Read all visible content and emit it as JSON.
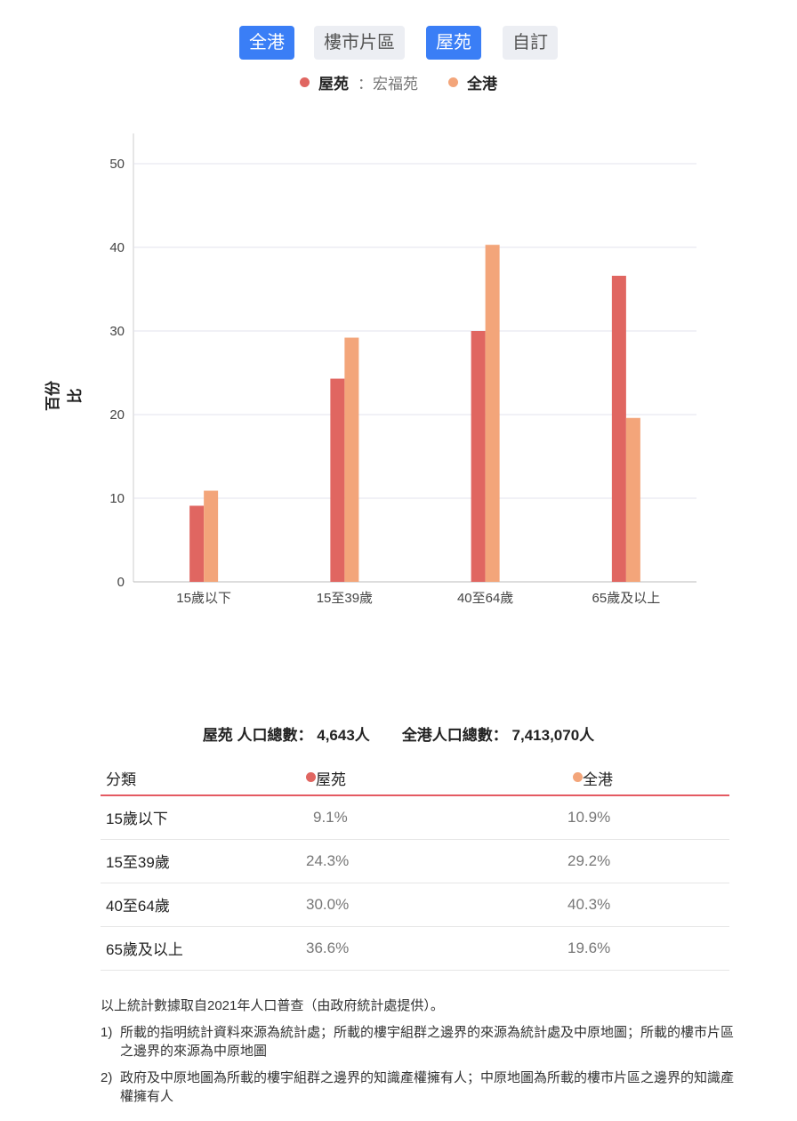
{
  "tabs": [
    {
      "label": "全港",
      "active": true
    },
    {
      "label": "樓市片區",
      "active": false
    },
    {
      "label": "屋苑",
      "active": true
    },
    {
      "label": "自訂",
      "active": false
    }
  ],
  "legend": {
    "estate_label": "屋苑",
    "estate_name": "：宏福苑",
    "hk_label": "全港"
  },
  "colors": {
    "estate": "#e06661",
    "hk": "#f3a57a",
    "tab_active": "#3a7ef6"
  },
  "chart_data": {
    "type": "bar",
    "categories": [
      "15歲以下",
      "15至39歲",
      "40至64歲",
      "65歲及以上"
    ],
    "series": [
      {
        "name": "屋苑",
        "values": [
          9.1,
          24.3,
          30.0,
          36.6
        ]
      },
      {
        "name": "全港",
        "values": [
          10.9,
          29.2,
          40.3,
          19.6
        ]
      }
    ],
    "ylabel": "百份比",
    "ylim": [
      0,
      50
    ],
    "yticks": [
      0,
      10,
      20,
      30,
      40,
      50
    ],
    "grid": true,
    "legend": "top"
  },
  "totals": {
    "estate": "屋苑 人口總數： 4,643人",
    "hk": "全港人口總數： 7,413,070人"
  },
  "table": {
    "headers": [
      "分類",
      "屋苑",
      "全港"
    ],
    "rows": [
      [
        "15歲以下",
        "9.1%",
        "10.9%"
      ],
      [
        "15至39歲",
        "24.3%",
        "29.2%"
      ],
      [
        "40至64歲",
        "30.0%",
        "40.3%"
      ],
      [
        "65歲及以上",
        "36.6%",
        "19.6%"
      ]
    ]
  },
  "notes": {
    "intro": "以上統計數據取自2021年人口普查（由政府統計處提供）。",
    "items": [
      {
        "num": "1)",
        "text": "所載的指明統計資料來源為統計處；所載的樓宇組群之邊界的來源為統計處及中原地圖；所載的樓市片區之邊界的來源為中原地圖"
      },
      {
        "num": "2)",
        "text": "政府及中原地圖為所載的樓宇組群之邊界的知識產權擁有人；中原地圖為所載的樓市片區之邊界的知識產權擁有人"
      }
    ]
  }
}
